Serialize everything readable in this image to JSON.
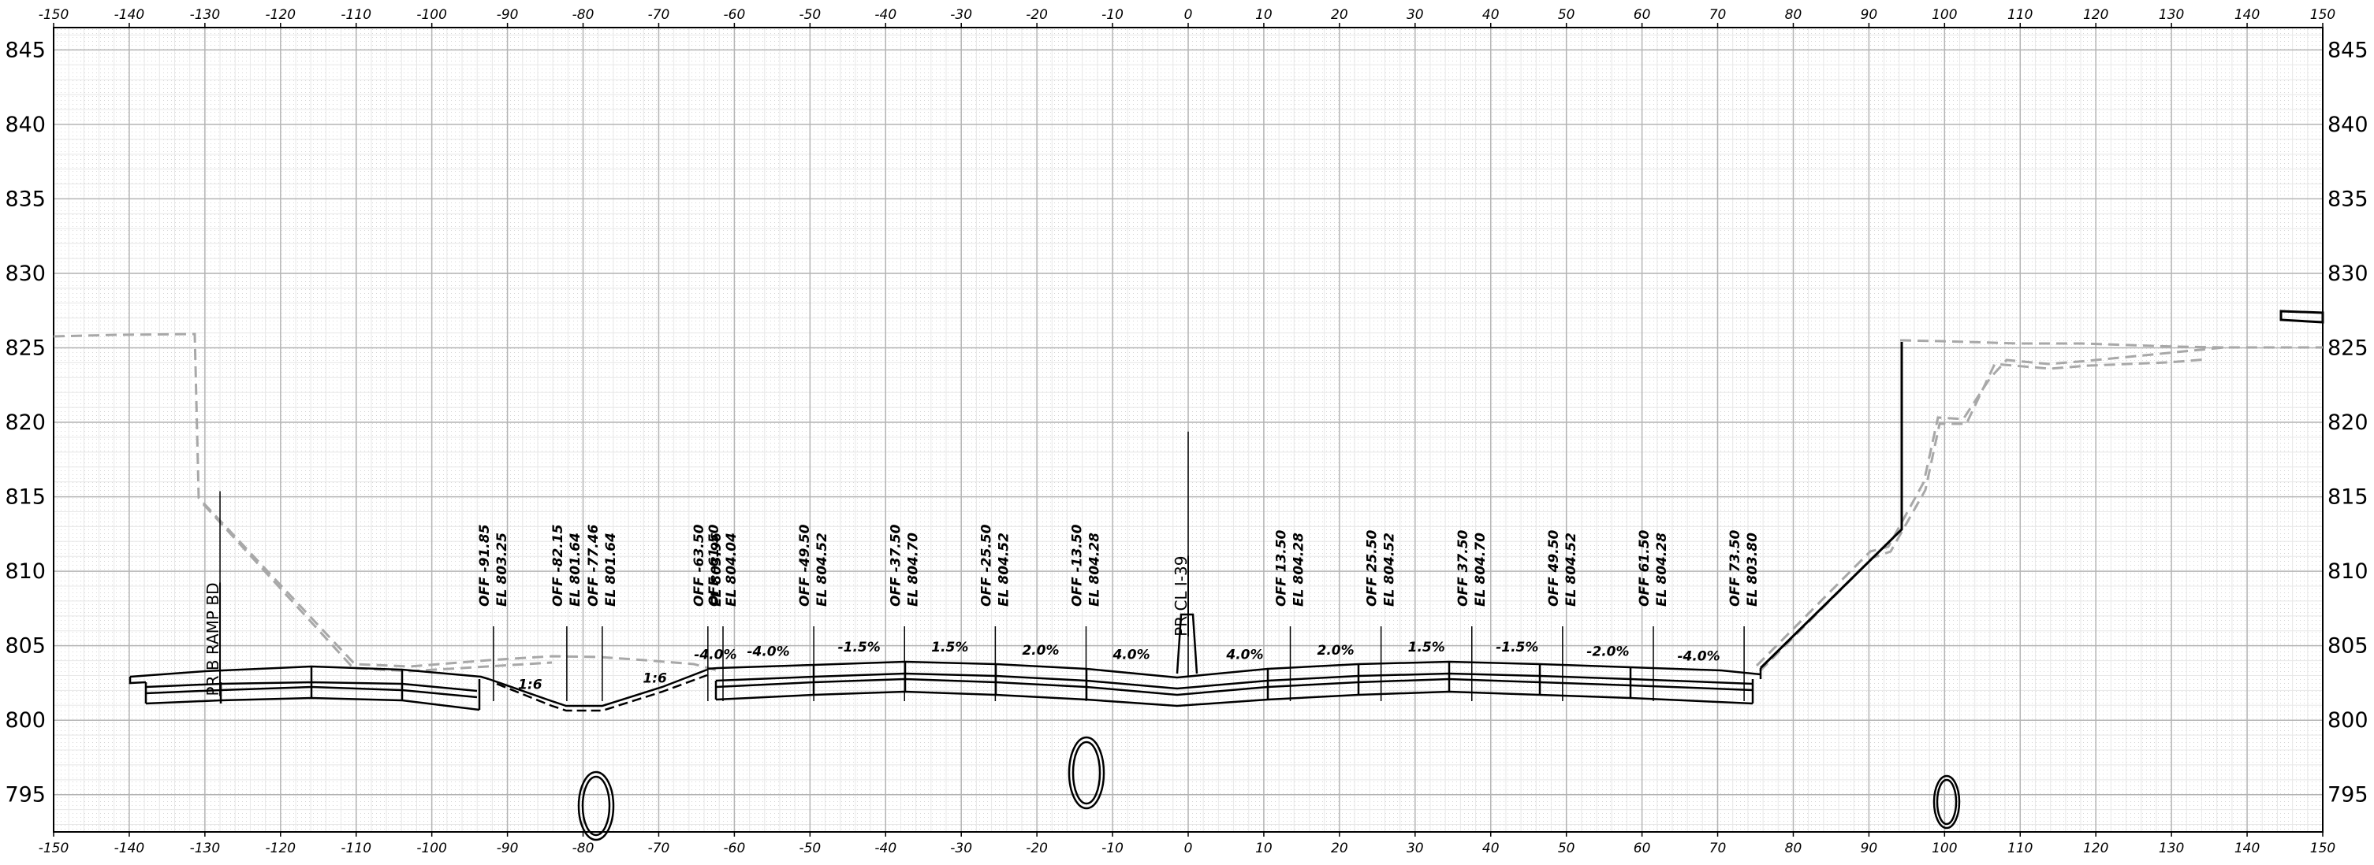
{
  "axes": {
    "x_ticks": [
      -150,
      -140,
      -130,
      -120,
      -110,
      -100,
      -90,
      -80,
      -70,
      -60,
      -50,
      -40,
      -30,
      -20,
      -10,
      0,
      10,
      20,
      30,
      40,
      50,
      60,
      70,
      80,
      90,
      100,
      110,
      120,
      130,
      140,
      150
    ],
    "y_ticks": [
      845,
      840,
      835,
      830,
      825,
      820,
      815,
      810,
      805,
      800,
      795
    ],
    "x_range": [
      -150,
      150
    ],
    "y_range": [
      792.5,
      846.5
    ],
    "grid": true
  },
  "offset_labels": [
    {
      "offset": -91.85,
      "line1": "OFF -91.85",
      "line2": "EL 803.25"
    },
    {
      "offset": -82.15,
      "line1": "OFF -82.15",
      "line2": "EL 801.64"
    },
    {
      "offset": -77.46,
      "line1": "OFF -77.46",
      "line2": "EL 801.64"
    },
    {
      "offset": -63.5,
      "line1": "OFF -63.50",
      "line2": "EL 803.96"
    },
    {
      "offset": -61.5,
      "line1": "OFF -61.50",
      "line2": "EL 804.04"
    },
    {
      "offset": -49.5,
      "line1": "OFF -49.50",
      "line2": "EL 804.52"
    },
    {
      "offset": -37.5,
      "line1": "OFF -37.50",
      "line2": "EL 804.70"
    },
    {
      "offset": -25.5,
      "line1": "OFF -25.50",
      "line2": "EL 804.52"
    },
    {
      "offset": -13.5,
      "line1": "OFF -13.50",
      "line2": "EL 804.28"
    },
    {
      "offset": 13.5,
      "line1": "OFF 13.50",
      "line2": "EL 804.28"
    },
    {
      "offset": 25.5,
      "line1": "OFF 25.50",
      "line2": "EL 804.52"
    },
    {
      "offset": 37.5,
      "line1": "OFF 37.50",
      "line2": "EL 804.70"
    },
    {
      "offset": 49.5,
      "line1": "OFF 49.50",
      "line2": "EL 804.52"
    },
    {
      "offset": 61.5,
      "line1": "OFF 61.50",
      "line2": "EL 804.28"
    },
    {
      "offset": 73.5,
      "line1": "OFF 73.50",
      "line2": "EL 803.80"
    }
  ],
  "slope_labels": [
    {
      "text": "-4.0%",
      "offset": -62.5,
      "elev": 803.9
    },
    {
      "text": "-4.0%",
      "offset": -55.5,
      "elev": 804.1
    },
    {
      "text": "-1.5%",
      "offset": -43.5,
      "elev": 804.4
    },
    {
      "text": "1.5%",
      "offset": -31.5,
      "elev": 804.4
    },
    {
      "text": "2.0%",
      "offset": -19.5,
      "elev": 804.2
    },
    {
      "text": "4.0%",
      "offset": -7.5,
      "elev": 803.9
    },
    {
      "text": "4.0%",
      "offset": 7.5,
      "elev": 803.9
    },
    {
      "text": "2.0%",
      "offset": 19.5,
      "elev": 804.2
    },
    {
      "text": "1.5%",
      "offset": 31.5,
      "elev": 804.4
    },
    {
      "text": "-1.5%",
      "offset": 43.5,
      "elev": 804.4
    },
    {
      "text": "-2.0%",
      "offset": 55.5,
      "elev": 804.1
    },
    {
      "text": "-4.0%",
      "offset": 67.5,
      "elev": 803.8
    },
    {
      "text": "1:6",
      "offset": -87,
      "elev": 801.9
    },
    {
      "text": "1:6",
      "offset": -70.5,
      "elev": 802.3
    }
  ],
  "alignment_labels": [
    {
      "text": "PR B RAMP BD",
      "offset": -128,
      "elev": 808.5
    },
    {
      "text": "PR CL I-39",
      "offset": 0,
      "elev": 812.5
    }
  ],
  "colors": {
    "grid_major": "#b4b4b4",
    "grid_minor": "#e8e8e8",
    "ground": "#a8a8a8",
    "ink": "#000000"
  }
}
